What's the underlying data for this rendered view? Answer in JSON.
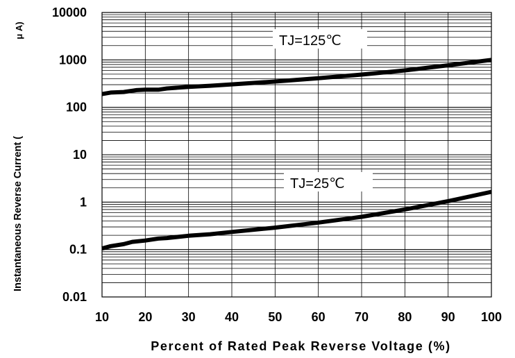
{
  "chart_data": {
    "type": "line",
    "xlabel": "Percent of Rated Peak Reverse Voltage (%)",
    "ylabel": "Instantaneous Reverse Current (",
    "ylabel_unit": "μ A)",
    "xlim": [
      10,
      100
    ],
    "ylim": [
      0.01,
      10000
    ],
    "yscale": "log",
    "grid": true,
    "x_ticks": [
      10,
      20,
      30,
      40,
      50,
      60,
      70,
      80,
      90,
      100
    ],
    "x_tick_labels": [
      "10",
      "20",
      "30",
      "40",
      "50",
      "60",
      "70",
      "80",
      "90",
      "100"
    ],
    "y_ticks": [
      0.01,
      0.1,
      1,
      10,
      100,
      1000,
      10000
    ],
    "y_tick_labels": [
      "0.01",
      "0.1",
      "1",
      "10",
      "100",
      "1000",
      "10000"
    ],
    "annotations": [
      "TJ=125℃",
      "TJ=25℃"
    ],
    "series": [
      {
        "name": "TJ=125℃",
        "x": [
          10,
          12,
          15,
          18,
          20,
          23,
          25,
          30,
          35,
          40,
          50,
          60,
          70,
          80,
          90,
          100
        ],
        "y": [
          190,
          205,
          210,
          230,
          235,
          235,
          250,
          270,
          285,
          305,
          350,
          410,
          490,
          600,
          770,
          1000
        ]
      },
      {
        "name": "TJ=25℃",
        "x": [
          10,
          12,
          15,
          17,
          20,
          23,
          25,
          30,
          35,
          40,
          50,
          60,
          70,
          80,
          90,
          100
        ],
        "y": [
          0.105,
          0.118,
          0.13,
          0.145,
          0.155,
          0.17,
          0.175,
          0.195,
          0.21,
          0.235,
          0.29,
          0.37,
          0.49,
          0.7,
          1.05,
          1.65
        ]
      }
    ]
  }
}
